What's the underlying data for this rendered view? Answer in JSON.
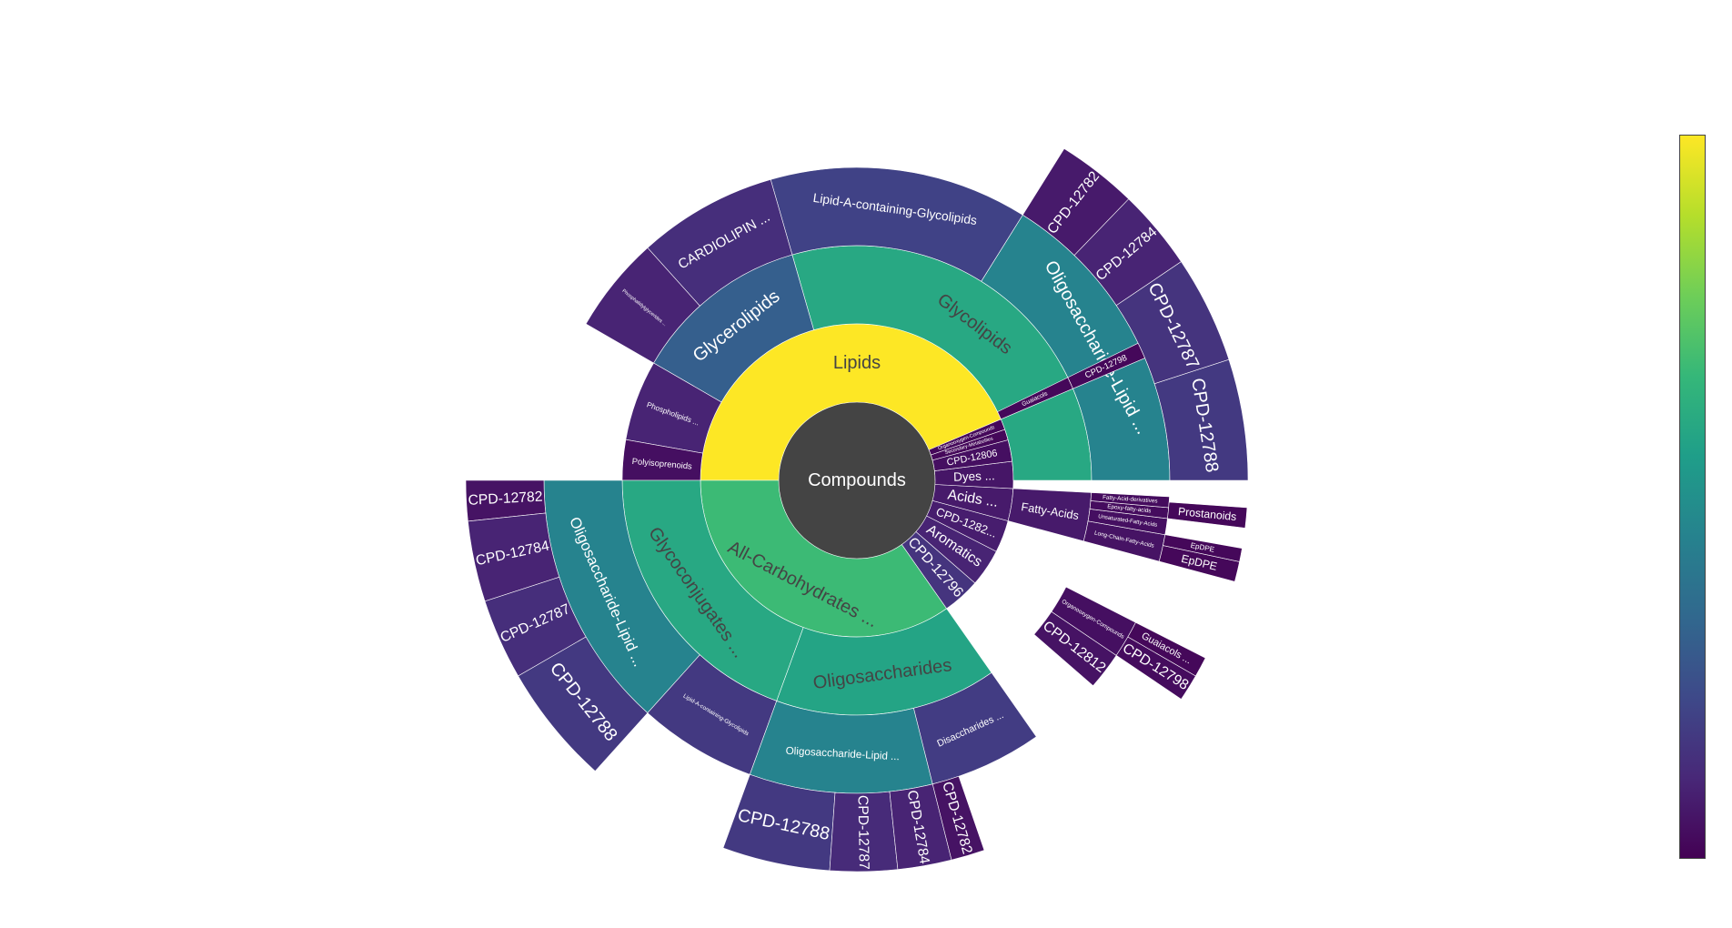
{
  "chart_data": {
    "type": "sunburst",
    "root_label": "Compounds",
    "root_color": "#444444",
    "colorscale": [
      "#440154",
      "#482878",
      "#3e4989",
      "#31688e",
      "#26828e",
      "#1f9e89",
      "#35b779",
      "#6ece58",
      "#b5de2b",
      "#fde725"
    ],
    "rings": [
      [
        {
          "label": "Lipids",
          "start": 0,
          "end": 180,
          "value": 1.0
        },
        {
          "label": "All-Carbohydrates ...",
          "start": 180,
          "end": 305,
          "value": 0.68
        },
        {
          "label": "CPD-12796",
          "start": 305,
          "end": 319,
          "value": 0.15
        },
        {
          "label": "Aromatics",
          "start": 319,
          "end": 333,
          "value": 0.1
        },
        {
          "label": "CPD-1282...",
          "start": 333,
          "end": 345,
          "value": 0.08
        },
        {
          "label": "Acids ...",
          "start": 345,
          "end": 357,
          "value": 0.07
        },
        {
          "label": "Dyes ...",
          "start": 357,
          "end": 367,
          "value": 0.06
        },
        {
          "label": "CPD-12806",
          "start": 367,
          "end": 375,
          "value": 0.04
        },
        {
          "label": "Secondary-Metabolites",
          "start": 375,
          "end": 379,
          "value": 0.02
        },
        {
          "label": "Organooxygen-Compounds",
          "start": 379,
          "end": 383,
          "value": 0.02
        }
      ],
      [
        {
          "label": "Glycolipids",
          "start": 0,
          "end": 106,
          "value": 0.6
        },
        {
          "label": "Glycerolipids",
          "start": 106,
          "end": 150,
          "value": 0.3
        },
        {
          "label": "Phospholipids ...",
          "start": 150,
          "end": 170,
          "value": 0.1
        },
        {
          "label": "Polyisoprenoids",
          "start": 170,
          "end": 180,
          "value": 0.04
        },
        {
          "label": "Glycoconjugates ...",
          "start": 180,
          "end": 250,
          "value": 0.6
        },
        {
          "label": "Oligosaccharides",
          "start": 250,
          "end": 305,
          "value": 0.58
        },
        {
          "label": "Fatty-Acids",
          "start": 345,
          "end": 357,
          "value": 0.07
        },
        {
          "label": "Guaiacols",
          "start": 383,
          "end": 386,
          "value": 0.02
        }
      ],
      [
        {
          "label": "Oligosaccharide-Lipid ...",
          "start": 0,
          "end": 58,
          "value": 0.45
        },
        {
          "label": "Lipid-A-containing-Glycolipids",
          "start": 58,
          "end": 106,
          "value": 0.2
        },
        {
          "label": "CARDIOLIPIN ...",
          "start": 106,
          "end": 132,
          "value": 0.13
        },
        {
          "label": "Phosphatidylglycerides ...",
          "start": 132,
          "end": 150,
          "value": 0.1
        },
        {
          "label": "Oligosaccharide-Lipid ...",
          "start": 180,
          "end": 228,
          "value": 0.45
        },
        {
          "label": "Lipid-A-containing-Glycolipids",
          "start": 228,
          "end": 250,
          "value": 0.17
        },
        {
          "label": "Oligosaccharide-Lipid ...",
          "start": 250,
          "end": 284,
          "value": 0.45
        },
        {
          "label": "Disaccharides ...",
          "start": 284,
          "end": 305,
          "value": 0.18
        },
        {
          "label": "CPD-12812",
          "start": 319,
          "end": 326,
          "value": 0.05
        },
        {
          "label": "Organooxygen-Compounds",
          "start": 326,
          "end": 333,
          "value": 0.04
        },
        {
          "label": "Long-Chain-Fatty-Acids",
          "start": 345,
          "end": 350,
          "value": 0.05
        },
        {
          "label": "Unsaturated-Fatty-Acids",
          "start": 350,
          "end": 353,
          "value": 0.04
        },
        {
          "label": "Epoxy-fatty-acids",
          "start": 353,
          "end": 355,
          "value": 0.03
        },
        {
          "label": "Fatty-Acid-derivatives",
          "start": 355,
          "end": 357,
          "value": 0.03
        },
        {
          "label": "CPD-12798",
          "start": 383,
          "end": 386,
          "value": 0.02
        }
      ],
      [
        {
          "label": "CPD-12788",
          "start": 0,
          "end": 18,
          "value": 0.17
        },
        {
          "label": "CPD-12787",
          "start": 18,
          "end": 34,
          "value": 0.15
        },
        {
          "label": "CPD-12784",
          "start": 34,
          "end": 46,
          "value": 0.1
        },
        {
          "label": "CPD-12782",
          "start": 46,
          "end": 58,
          "value": 0.07
        },
        {
          "label": "CPD-12782",
          "start": 180,
          "end": 186,
          "value": 0.05
        },
        {
          "label": "CPD-12784",
          "start": 186,
          "end": 198,
          "value": 0.1
        },
        {
          "label": "CPD-12787",
          "start": 198,
          "end": 210,
          "value": 0.13
        },
        {
          "label": "CPD-12788",
          "start": 210,
          "end": 228,
          "value": 0.17
        },
        {
          "label": "CPD-12788",
          "start": 250,
          "end": 266,
          "value": 0.17
        },
        {
          "label": "CPD-12787",
          "start": 266,
          "end": 276,
          "value": 0.12
        },
        {
          "label": "CPD-12784",
          "start": 276,
          "end": 284,
          "value": 0.1
        },
        {
          "label": "CPD-12782",
          "start": 284,
          "end": 289,
          "value": 0.05
        },
        {
          "label": "CPD-12798",
          "start": 326,
          "end": 330,
          "value": 0.03
        },
        {
          "label": "Guaiacols ...",
          "start": 330,
          "end": 333,
          "value": 0.02
        },
        {
          "label": "EpDPE",
          "start": 345,
          "end": 348,
          "value": 0.02
        },
        {
          "label": "EpDPE",
          "start": 348,
          "end": 350,
          "value": 0.02
        },
        {
          "label": "Prostanoids",
          "start": 353,
          "end": 356,
          "value": 0.02
        }
      ]
    ],
    "colorbar": true
  }
}
